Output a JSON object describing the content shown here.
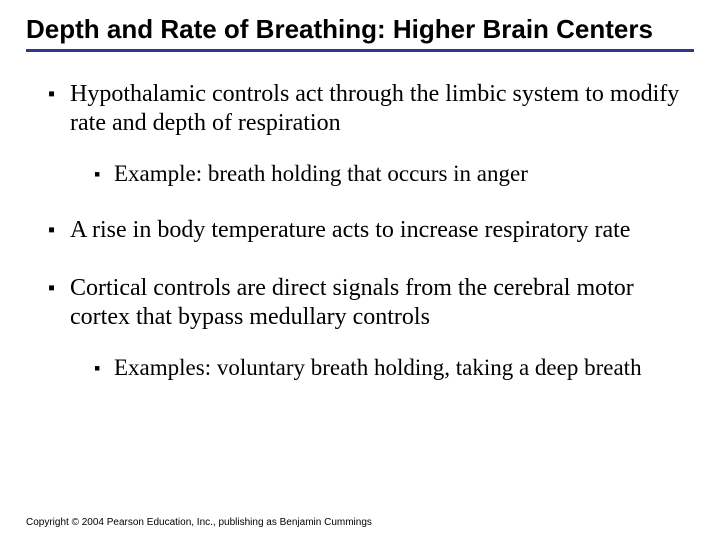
{
  "title_fontsize": 26,
  "body_fontsize": 24,
  "sub_fontsize": 23,
  "copyright_fontsize": 10,
  "underline_color": "#2a3a8f",
  "background_color": "#ffffff",
  "text_color": "#000000",
  "bullet_glyph": "▪",
  "title": "Depth and Rate of Breathing: Higher Brain Centers",
  "bullets": [
    {
      "text": "Hypothalamic controls act through the limbic system to modify rate and depth of respiration",
      "children": [
        {
          "text": "Example: breath holding that occurs in anger"
        }
      ]
    },
    {
      "text": "A rise in body temperature acts to increase respiratory rate",
      "children": []
    },
    {
      "text": "Cortical controls are direct signals from the cerebral motor cortex that bypass medullary controls",
      "children": [
        {
          "text": "Examples: voluntary breath holding, taking a deep breath"
        }
      ]
    }
  ],
  "copyright": "Copyright © 2004 Pearson Education, Inc., publishing as Benjamin Cummings"
}
